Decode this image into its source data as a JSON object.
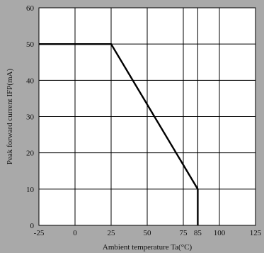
{
  "chart_data": {
    "type": "line",
    "series": [
      {
        "x": [
          -25,
          25,
          85,
          85
        ],
        "y": [
          50,
          50,
          10,
          0
        ]
      }
    ],
    "xlim": [
      -25,
      125
    ],
    "ylim": [
      0,
      60
    ],
    "xticks": [
      -25,
      0,
      25,
      50,
      75,
      85,
      100,
      125
    ],
    "yticks": [
      0,
      10,
      20,
      30,
      40,
      50,
      60
    ],
    "xlabel": "Ambient temperature Ta(°C)",
    "ylabel": "Peak forward current IFP(mA)",
    "grid": true,
    "colors": {
      "background": "#a9a9a9",
      "plot": "#ffffff",
      "line": "#000000",
      "grid": "#000000"
    }
  }
}
